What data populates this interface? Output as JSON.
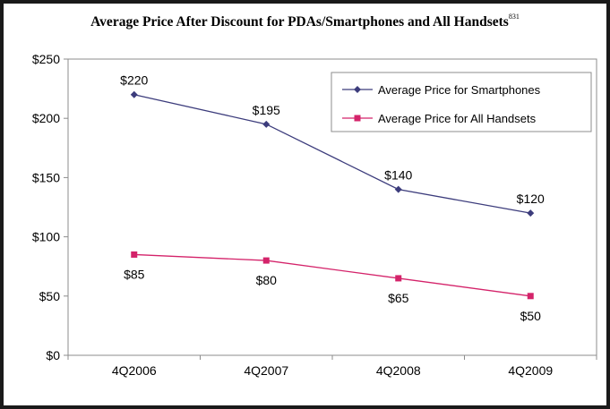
{
  "chart_data": {
    "type": "line",
    "title": "Average Price After Discount for PDAs/Smartphones and All Handsets",
    "title_superscript": "831",
    "categories": [
      "4Q2006",
      "4Q2007",
      "4Q2008",
      "4Q2009"
    ],
    "ylim": [
      0,
      250
    ],
    "yticks": [
      0,
      50,
      100,
      150,
      200,
      250
    ],
    "ytick_labels": [
      "$0",
      "$50",
      "$100",
      "$150",
      "$200",
      "$250"
    ],
    "xlabel": "",
    "ylabel": "",
    "grid": false,
    "legend_position": "top-right",
    "series": [
      {
        "name": "Average Price for Smartphones",
        "values": [
          220,
          195,
          140,
          120
        ],
        "labels": [
          "$220",
          "$195",
          "$140",
          "$120"
        ],
        "color": "#3c3c7c",
        "marker": "diamond",
        "label_side": "above"
      },
      {
        "name": "Average Price for All Handsets",
        "values": [
          85,
          80,
          65,
          50
        ],
        "labels": [
          "$85",
          "$80",
          "$65",
          "$50"
        ],
        "color": "#d4236a",
        "marker": "square",
        "label_side": "below"
      }
    ]
  }
}
